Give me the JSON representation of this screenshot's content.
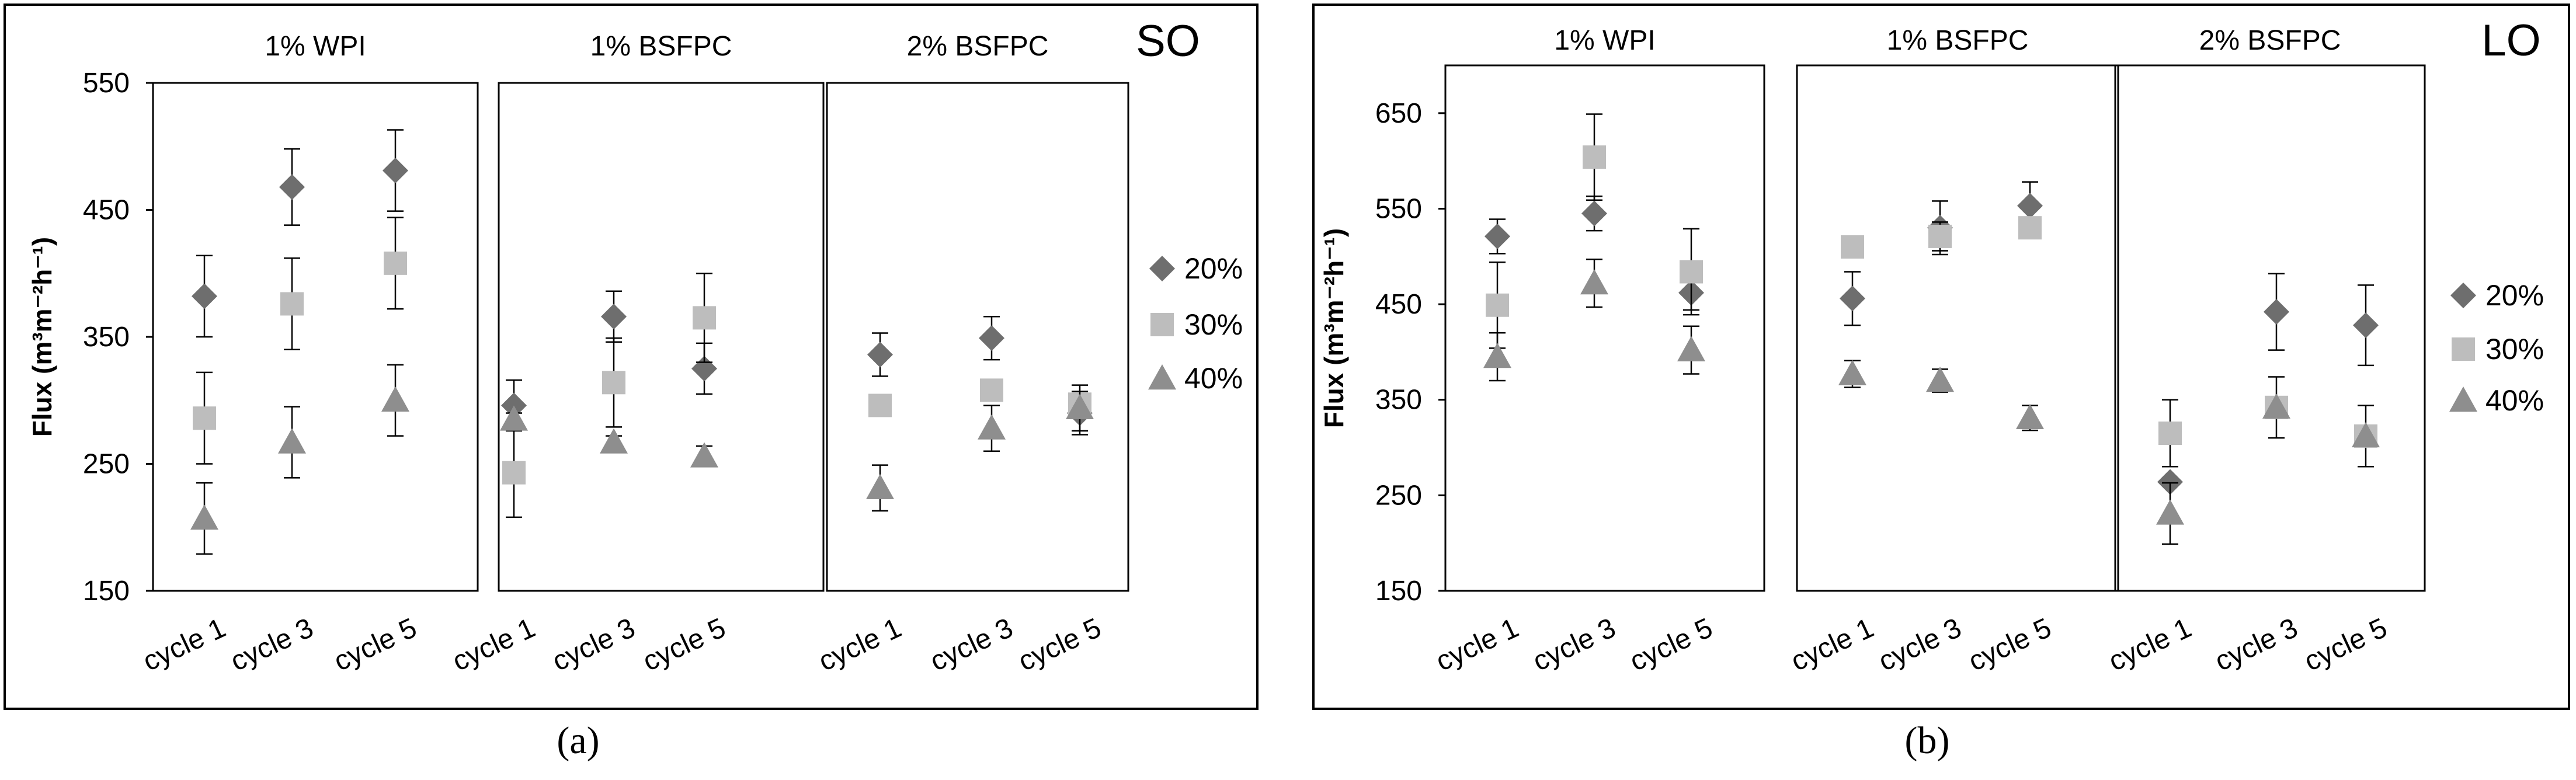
{
  "chart_data": [
    {
      "type": "scatter",
      "panel_label": "SO",
      "caption": "(a)",
      "ylabel": "Flux (m³m⁻²h⁻¹)",
      "ylim": [
        150,
        550
      ],
      "yticks": [
        "150",
        "250",
        "350",
        "450",
        "550"
      ],
      "grid": false,
      "legend_position": "right",
      "groups": [
        {
          "title": "1% WPI",
          "categories": [
            "cycle 1",
            "cycle 3",
            "cycle 5"
          ],
          "series": [
            {
              "name": "20%",
              "values": [
                382,
                468,
                481
              ],
              "errors": [
                32,
                30,
                32
              ]
            },
            {
              "name": "30%",
              "values": [
                286,
                376,
                408
              ],
              "errors": [
                36,
                36,
                36
              ]
            },
            {
              "name": "40%",
              "values": [
                207,
                267,
                300
              ],
              "errors": [
                28,
                28,
                28
              ]
            }
          ]
        },
        {
          "title": "1% BSFPC",
          "categories": [
            "cycle 1",
            "cycle 3",
            "cycle 5"
          ],
          "series": [
            {
              "name": "20%",
              "values": [
                296,
                366,
                325
              ],
              "errors": [
                20,
                20,
                20
              ]
            },
            {
              "name": "30%",
              "values": [
                243,
                314,
                365
              ],
              "errors": [
                35,
                35,
                35
              ]
            },
            {
              "name": "40%",
              "values": [
                285,
                267,
                256
              ],
              "errors": [
                5,
                5,
                8
              ]
            }
          ]
        },
        {
          "title": "2% BSFPC",
          "categories": [
            "cycle 1",
            "cycle 3",
            "cycle 5"
          ],
          "series": [
            {
              "name": "20%",
              "values": [
                336,
                349,
                290
              ],
              "errors": [
                17,
                17,
                17
              ]
            },
            {
              "name": "30%",
              "values": [
                296,
                308,
                297
              ],
              "errors": [
                5,
                5,
                5
              ]
            },
            {
              "name": "40%",
              "values": [
                231,
                278,
                294
              ],
              "errors": [
                18,
                18,
                18
              ]
            }
          ]
        }
      ],
      "legend": [
        {
          "name": "20%",
          "marker": "diamond",
          "color": "#6e6e6e"
        },
        {
          "name": "30%",
          "marker": "square",
          "color": "#bdbdbd"
        },
        {
          "name": "40%",
          "marker": "triangle",
          "color": "#8e8e8e"
        }
      ]
    },
    {
      "type": "scatter",
      "panel_label": "LO",
      "caption": "(b)",
      "ylabel": "Flux (m³m⁻²h⁻¹)",
      "ylim": [
        150,
        700
      ],
      "yticks": [
        "150",
        "250",
        "350",
        "450",
        "550",
        "650"
      ],
      "grid": false,
      "legend_position": "right",
      "groups": [
        {
          "title": "1% WPI",
          "categories": [
            "cycle 1",
            "cycle 3",
            "cycle 5"
          ],
          "series": [
            {
              "name": "20%",
              "values": [
                521,
                545,
                462
              ],
              "errors": [
                18,
                18,
                18
              ]
            },
            {
              "name": "30%",
              "values": [
                449,
                604,
                484
              ],
              "errors": [
                45,
                45,
                45
              ]
            },
            {
              "name": "40%",
              "values": [
                395,
                472,
                402
              ],
              "errors": [
                25,
                25,
                25
              ]
            }
          ]
        },
        {
          "title": "1% BSFPC",
          "categories": [
            "cycle 1",
            "cycle 3",
            "cycle 5"
          ],
          "series": [
            {
              "name": "20%",
              "values": [
                456,
                530,
                553
              ],
              "errors": [
                28,
                28,
                25
              ]
            },
            {
              "name": "30%",
              "values": [
                510,
                521,
                530
              ],
              "errors": [
                5,
                15,
                5
              ]
            },
            {
              "name": "40%",
              "values": [
                377,
                370,
                331
              ],
              "errors": [
                14,
                12,
                13
              ]
            }
          ]
        },
        {
          "title": "2% BSFPC",
          "categories": [
            "cycle 1",
            "cycle 3",
            "cycle 5"
          ],
          "series": [
            {
              "name": "20%",
              "values": [
                264,
                442,
                428
              ],
              "errors": [
                0,
                40,
                42
              ]
            },
            {
              "name": "30%",
              "values": [
                315,
                342,
                312
              ],
              "errors": [
                35,
                32,
                32
              ]
            },
            {
              "name": "40%",
              "values": [
                231,
                342,
                312
              ],
              "errors": [
                32,
                0,
                0
              ]
            }
          ]
        }
      ],
      "legend": [
        {
          "name": "20%",
          "marker": "diamond",
          "color": "#6e6e6e"
        },
        {
          "name": "30%",
          "marker": "square",
          "color": "#bdbdbd"
        },
        {
          "name": "40%",
          "marker": "triangle",
          "color": "#8e8e8e"
        }
      ]
    }
  ]
}
